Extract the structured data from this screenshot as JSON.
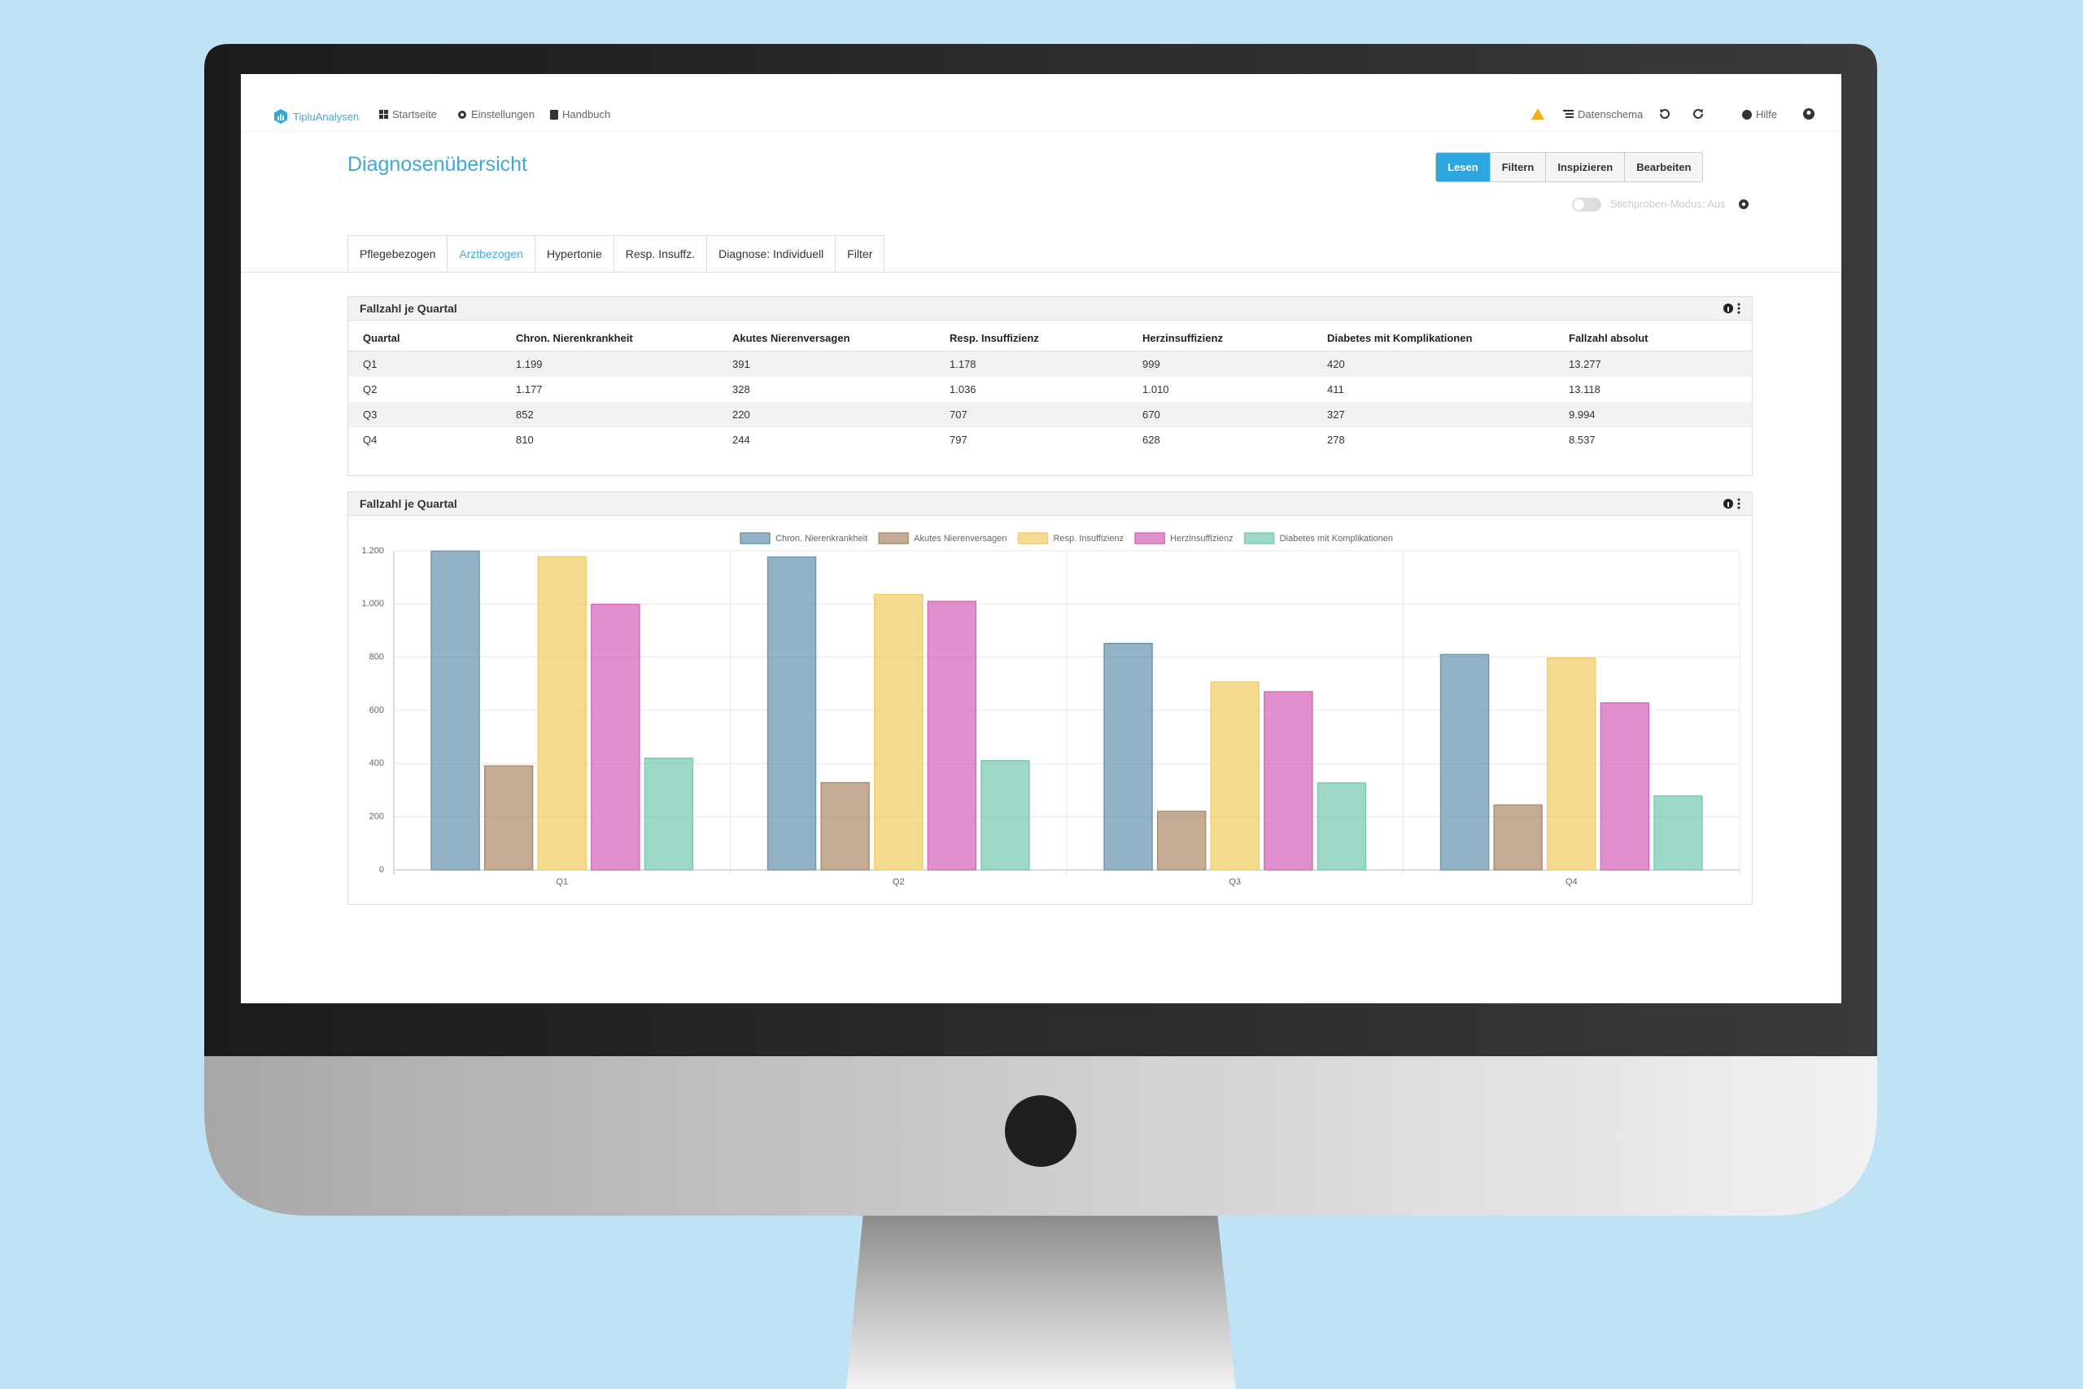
{
  "nav": {
    "brand": "TipluAnalysen",
    "items": [
      "Startseite",
      "Einstellungen",
      "Handbuch"
    ],
    "right": [
      "Datenschema",
      "Hilfe"
    ]
  },
  "header": {
    "title": "Diagnosenübersicht",
    "buttons": [
      "Lesen",
      "Filtern",
      "Inspizieren",
      "Bearbeiten"
    ],
    "sample_mode": "Stichproben-Modus: Aus"
  },
  "tabs": {
    "items": [
      "Pflegebezogen",
      "Arztbezogen",
      "Hypertonie",
      "Resp. Insuffz.",
      "Diagnose: Individuell",
      "Filter"
    ],
    "active": 1
  },
  "table": {
    "title": "Fallzahl je Quartal",
    "columns": [
      "Quartal",
      "Chron. Nierenkrankheit",
      "Akutes Nierenversagen",
      "Resp. Insuffizienz",
      "Herzinsuffizienz",
      "Diabetes mit Komplikationen",
      "Fallzahl absolut"
    ],
    "rows": [
      [
        "Q1",
        "1.199",
        "391",
        "1.178",
        "999",
        "420",
        "13.277"
      ],
      [
        "Q2",
        "1.177",
        "328",
        "1.036",
        "1.010",
        "411",
        "13.118"
      ],
      [
        "Q3",
        "852",
        "220",
        "707",
        "670",
        "327",
        "9.994"
      ],
      [
        "Q4",
        "810",
        "244",
        "797",
        "628",
        "278",
        "8.537"
      ]
    ]
  },
  "chart_data": {
    "type": "bar",
    "title": "Fallzahl je Quartal",
    "categories": [
      "Q1",
      "Q2",
      "Q3",
      "Q4"
    ],
    "series": [
      {
        "name": "Chron. Nierenkrankheit",
        "color": "#6f98b3",
        "values": [
          1199,
          1177,
          852,
          810
        ]
      },
      {
        "name": "Akutes Nierenversagen",
        "color": "#b08f70",
        "values": [
          391,
          328,
          220,
          244
        ]
      },
      {
        "name": "Resp. Insuffizienz",
        "color": "#f2cf6b",
        "values": [
          1178,
          1036,
          707,
          797
        ]
      },
      {
        "name": "Herzinsuffizienz",
        "color": "#d66bbc",
        "values": [
          999,
          1010,
          670,
          628
        ]
      },
      {
        "name": "Diabetes mit Komplikationen",
        "color": "#7ccbb6",
        "values": [
          420,
          411,
          327,
          278
        ]
      }
    ],
    "ylim": [
      0,
      1200
    ],
    "yticks": [
      0,
      200,
      400,
      600,
      800,
      {
        "value": 1000,
        "label": "1.000"
      },
      {
        "value": 1200,
        "label": "1.200"
      }
    ],
    "grid": true
  }
}
